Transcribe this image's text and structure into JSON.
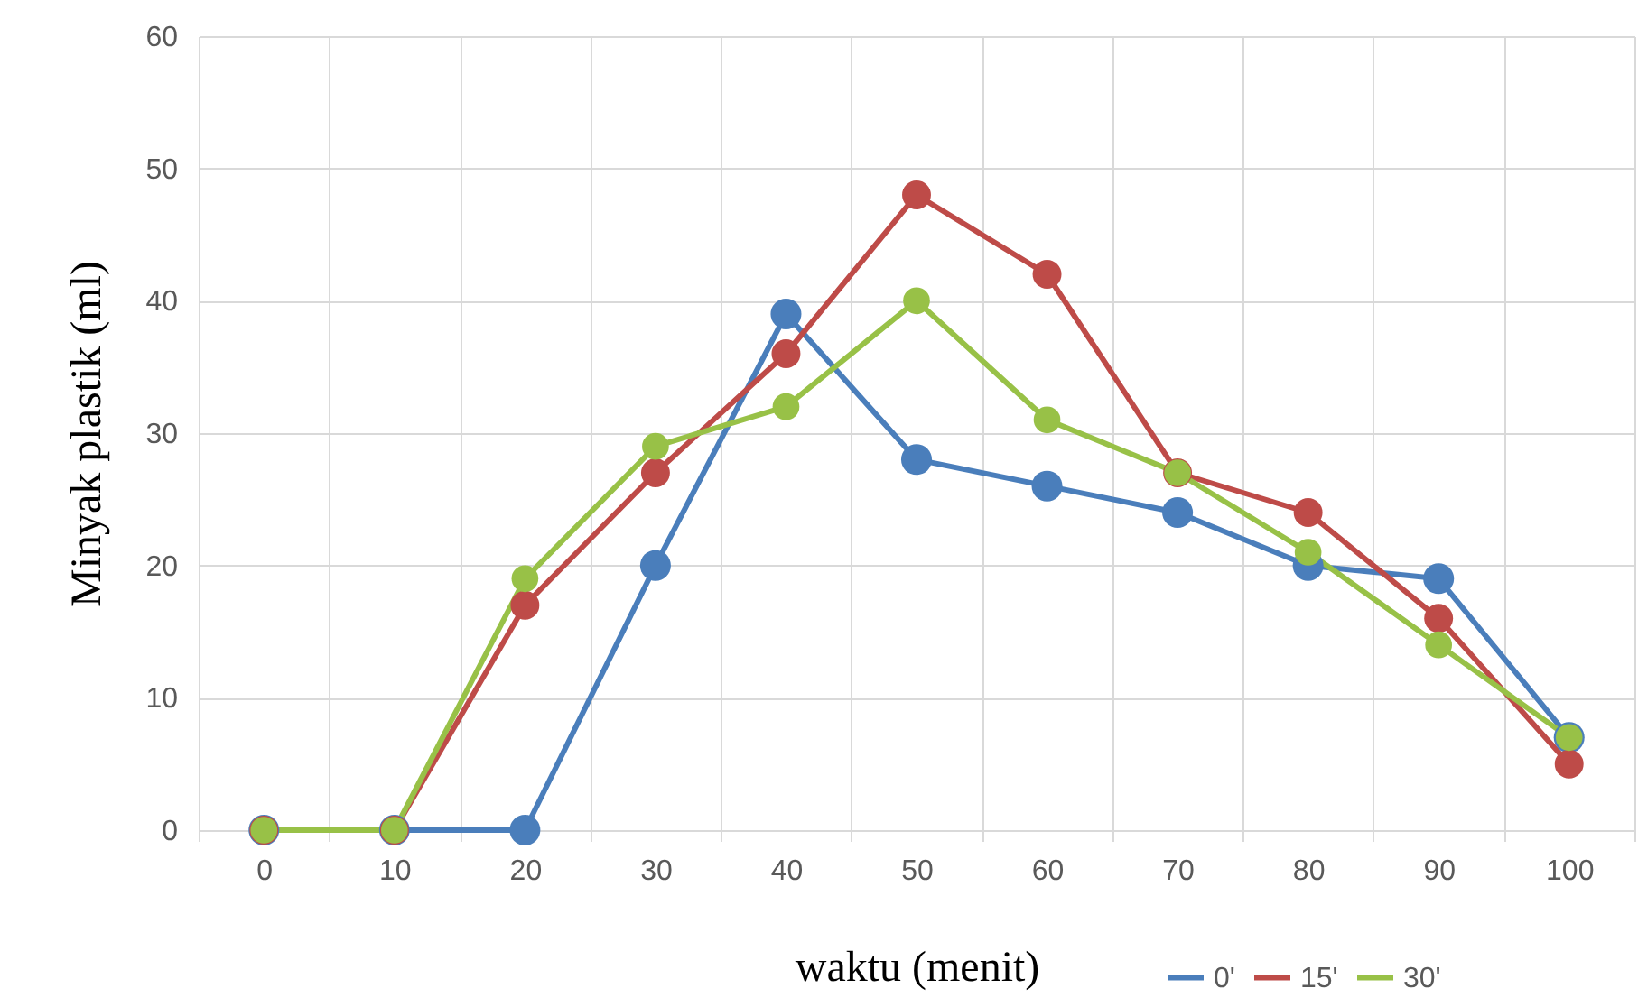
{
  "chart_data": {
    "type": "line",
    "xlabel": "waktu (menit)",
    "ylabel": "Minyak plastik (ml)",
    "categories": [
      "0",
      "10",
      "20",
      "30",
      "40",
      "50",
      "60",
      "70",
      "80",
      "90",
      "100"
    ],
    "series": [
      {
        "name": "0'",
        "color": "#4a7ebb",
        "values": [
          0,
          0,
          0,
          20,
          39,
          28,
          26,
          24,
          20,
          19,
          7
        ]
      },
      {
        "name": "15'",
        "color": "#be4b48",
        "values": [
          0,
          0,
          17,
          27,
          36,
          48,
          42,
          27,
          24,
          16,
          5
        ]
      },
      {
        "name": "30'",
        "color": "#98c147",
        "values": [
          0,
          0,
          19,
          29,
          32,
          40,
          31,
          27,
          21,
          14,
          7
        ]
      }
    ],
    "ylim": [
      0,
      60
    ],
    "yticks": [
      0,
      10,
      20,
      30,
      40,
      50,
      60
    ],
    "grid": true,
    "legend": "bottom right",
    "marker": "circle",
    "line_style": "solid"
  }
}
